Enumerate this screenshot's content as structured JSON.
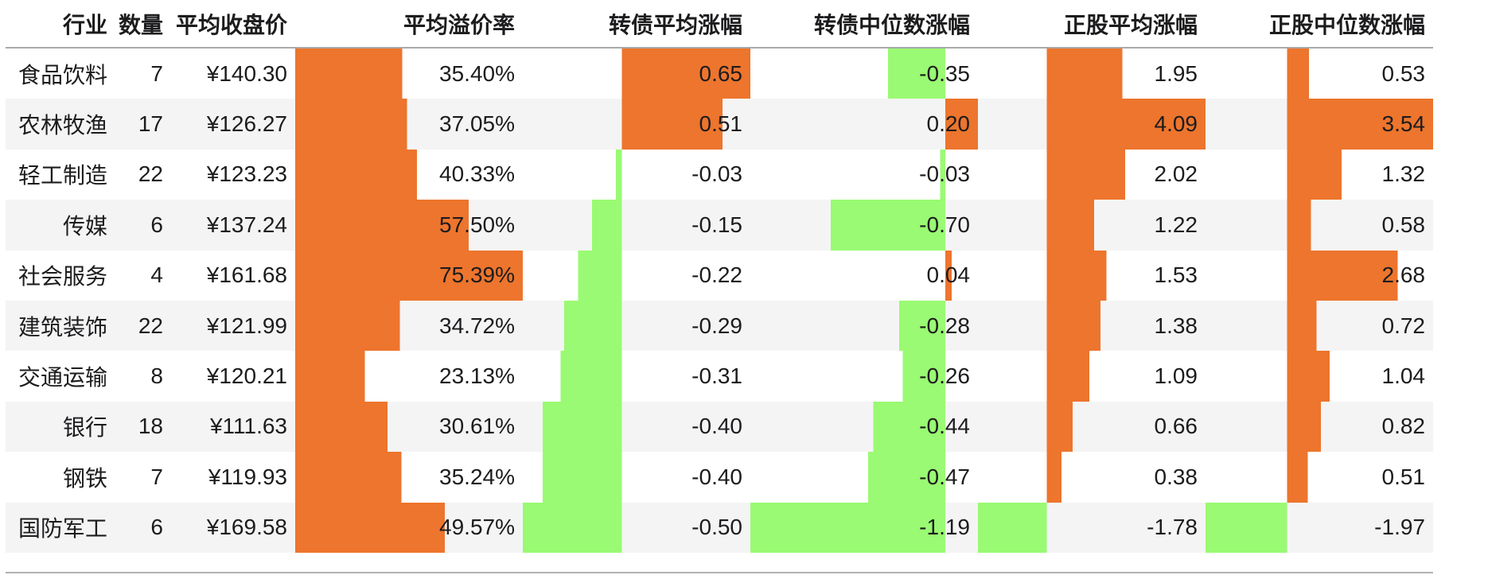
{
  "colors": {
    "positive_bar": "#ed752d",
    "negative_bar": "#9afa73",
    "stripe": "#f4f4f5",
    "row_white": "#ffffff",
    "header_rule": "#a9a9a9",
    "bottom_rule": "#b2b2b2",
    "text": "#1c1c1e"
  },
  "table": {
    "columns": [
      {
        "key": "industry",
        "label": "行业",
        "type": "text"
      },
      {
        "key": "count",
        "label": "数量",
        "type": "number",
        "decimals": 0
      },
      {
        "key": "avg_close",
        "label": "平均收盘价",
        "type": "number",
        "decimals": 2,
        "prefix": "¥"
      },
      {
        "key": "avg_premium",
        "label": "平均溢价率",
        "type": "bar",
        "decimals": 2,
        "suffix": "%"
      },
      {
        "key": "cb_avg_chg",
        "label": "转债平均涨幅",
        "type": "bar",
        "decimals": 2
      },
      {
        "key": "cb_med_chg",
        "label": "转债中位数涨幅",
        "type": "bar",
        "decimals": 2
      },
      {
        "key": "stock_avg_chg",
        "label": "正股平均涨幅",
        "type": "bar",
        "decimals": 2
      },
      {
        "key": "stock_med_chg",
        "label": "正股中位数涨幅",
        "type": "bar",
        "decimals": 2
      }
    ],
    "rows": [
      [
        "食品饮料",
        7,
        140.3,
        35.4,
        0.65,
        -0.35,
        1.95,
        0.53
      ],
      [
        "农林牧渔",
        17,
        126.27,
        37.05,
        0.51,
        0.2,
        4.09,
        3.54
      ],
      [
        "轻工制造",
        22,
        123.23,
        40.33,
        -0.03,
        -0.03,
        2.02,
        1.32
      ],
      [
        "传媒",
        6,
        137.24,
        57.5,
        -0.15,
        -0.7,
        1.22,
        0.58
      ],
      [
        "社会服务",
        4,
        161.68,
        75.39,
        -0.22,
        0.04,
        1.53,
        2.68
      ],
      [
        "建筑装饰",
        22,
        121.99,
        34.72,
        -0.29,
        -0.28,
        1.38,
        0.72
      ],
      [
        "交通运输",
        8,
        120.21,
        23.13,
        -0.31,
        -0.26,
        1.09,
        1.04
      ],
      [
        "银行",
        18,
        111.63,
        30.61,
        -0.4,
        -0.44,
        0.66,
        0.82
      ],
      [
        "钢铁",
        7,
        119.93,
        35.24,
        -0.4,
        -0.47,
        0.38,
        0.51
      ],
      [
        "国防军工",
        6,
        169.58,
        49.57,
        -0.5,
        -1.19,
        -1.78,
        -1.97
      ]
    ]
  },
  "chart_data": {
    "type": "table",
    "title": "",
    "notes": "Styled data table with in-cell data bars; orange bars = positive values, light-green bars = negative values; bars scaled per column from min(0,min) to max(0,max), anchored at zero",
    "columns": [
      "行业",
      "数量",
      "平均收盘价",
      "平均溢价率",
      "转债平均涨幅",
      "转债中位数涨幅",
      "正股平均涨幅",
      "正股中位数涨幅"
    ],
    "bar_columns": [
      "平均溢价率",
      "转债平均涨幅",
      "转债中位数涨幅",
      "正股平均涨幅",
      "正股中位数涨幅"
    ],
    "series": [
      {
        "name": "行业",
        "values": [
          "食品饮料",
          "农林牧渔",
          "轻工制造",
          "传媒",
          "社会服务",
          "建筑装饰",
          "交通运输",
          "银行",
          "钢铁",
          "国防军工"
        ]
      },
      {
        "name": "数量",
        "values": [
          7,
          17,
          22,
          6,
          4,
          22,
          8,
          18,
          7,
          6
        ]
      },
      {
        "name": "平均收盘价",
        "values": [
          140.3,
          126.27,
          123.23,
          137.24,
          161.68,
          121.99,
          120.21,
          111.63,
          119.93,
          169.58
        ]
      },
      {
        "name": "平均溢价率",
        "values": [
          35.4,
          37.05,
          40.33,
          57.5,
          75.39,
          34.72,
          23.13,
          30.61,
          35.24,
          49.57
        ]
      },
      {
        "name": "转债平均涨幅",
        "values": [
          0.65,
          0.51,
          -0.03,
          -0.15,
          -0.22,
          -0.29,
          -0.31,
          -0.4,
          -0.4,
          -0.5
        ]
      },
      {
        "name": "转债中位数涨幅",
        "values": [
          -0.35,
          0.2,
          -0.03,
          -0.7,
          0.04,
          -0.28,
          -0.26,
          -0.44,
          -0.47,
          -1.19
        ]
      },
      {
        "name": "正股平均涨幅",
        "values": [
          1.95,
          4.09,
          2.02,
          1.22,
          1.53,
          1.38,
          1.09,
          0.66,
          0.38,
          -1.78
        ]
      },
      {
        "name": "正股中位数涨幅",
        "values": [
          0.53,
          3.54,
          1.32,
          0.58,
          2.68,
          0.72,
          1.04,
          0.82,
          0.51,
          -1.97
        ]
      }
    ],
    "legend_position": "none",
    "grid": false
  }
}
